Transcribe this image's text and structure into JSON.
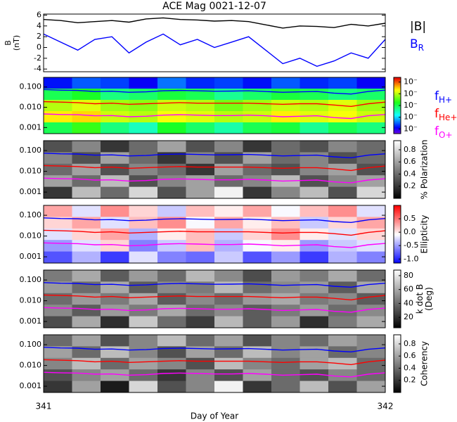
{
  "chart_data": [
    {
      "type": "line",
      "title": "ACE Mag 0021-12-07",
      "ylabel": [
        "B",
        "(nT)"
      ],
      "xlim": [
        341,
        342
      ],
      "ylim": [
        -4.5,
        6.2
      ],
      "yticks": [
        -4,
        -2,
        0,
        2,
        4,
        6
      ],
      "legend": "right",
      "x": [
        341.0,
        341.05,
        341.1,
        341.15,
        341.2,
        341.25,
        341.3,
        341.35,
        341.4,
        341.45,
        341.5,
        341.55,
        341.6,
        341.65,
        341.7,
        341.75,
        341.8,
        341.85,
        341.9,
        341.95,
        342.0
      ],
      "series": [
        {
          "name": "|B|",
          "color": "#000000",
          "values": [
            5.2,
            5.0,
            4.6,
            4.8,
            5.0,
            4.7,
            5.3,
            5.5,
            5.2,
            5.1,
            4.9,
            5.0,
            4.8,
            4.2,
            3.6,
            4.0,
            3.9,
            3.7,
            4.3,
            4.0,
            4.5
          ]
        },
        {
          "name": "B",
          "subscript": "R",
          "color": "#0000ff",
          "values": [
            2.5,
            1.0,
            -0.5,
            1.5,
            2.0,
            -1.0,
            1.0,
            2.5,
            0.5,
            1.5,
            0.0,
            1.0,
            2.0,
            -0.5,
            -3.0,
            -2.0,
            -3.5,
            -2.5,
            -1.0,
            -2.0,
            1.5
          ]
        }
      ]
    },
    {
      "type": "heatmap",
      "colormap": "rainbow",
      "xlim": [
        341,
        342
      ],
      "ylim": [
        0.0005,
        0.3
      ],
      "log_y": true,
      "yticks": [
        {
          "value": 0.001,
          "label": "0.001"
        },
        {
          "value": 0.01,
          "label": "0.010"
        },
        {
          "value": 0.1,
          "label": "0.100"
        }
      ],
      "clim": [
        -7.4,
        -2.6
      ],
      "cticks": [
        {
          "value": -3,
          "label": "10⁻"
        },
        {
          "value": -4,
          "label": "10⁻"
        },
        {
          "value": -5,
          "label": "10⁻"
        },
        {
          "value": -6,
          "label": "10⁻"
        },
        {
          "value": -7,
          "label": "10⁻"
        }
      ],
      "z": [
        [
          -6.8,
          -6.5,
          -6.6,
          -6.9,
          -6.4,
          -6.7,
          -6.6,
          -6.8,
          -6.5,
          -6.7,
          -6.6,
          -6.9
        ],
        [
          -5.0,
          -4.8,
          -5.2,
          -5.1,
          -4.9,
          -5.0,
          -5.3,
          -5.1,
          -4.9,
          -5.0,
          -5.2,
          -5.1
        ],
        [
          -4.0,
          -3.8,
          -4.1,
          -4.2,
          -3.9,
          -4.0,
          -4.3,
          -4.1,
          -3.9,
          -4.0,
          -3.8,
          -4.1
        ],
        [
          -3.6,
          -3.5,
          -3.9,
          -4.0,
          -3.7,
          -3.8,
          -4.0,
          -3.9,
          -3.6,
          -3.8,
          -3.7,
          -3.9
        ],
        [
          -5.0,
          -4.6,
          -5.2,
          -5.5,
          -4.8,
          -5.1,
          -5.4,
          -5.0,
          -4.9,
          -5.3,
          -5.0,
          -5.2
        ]
      ],
      "legend": "right",
      "x": [
        341.0,
        341.05,
        341.1,
        341.15,
        341.2,
        341.25,
        341.3,
        341.35,
        341.4,
        341.45,
        341.5,
        341.55,
        341.6,
        341.65,
        341.7,
        341.75,
        341.8,
        341.85,
        341.9,
        341.95,
        342.0
      ],
      "series": [
        {
          "name": "f",
          "subscript": "H+",
          "color": "#0000ff",
          "values": [
            0.075,
            0.07,
            0.068,
            0.06,
            0.062,
            0.055,
            0.058,
            0.065,
            0.068,
            0.065,
            0.062,
            0.063,
            0.065,
            0.06,
            0.055,
            0.058,
            0.06,
            0.05,
            0.045,
            0.06,
            0.07
          ]
        },
        {
          "name": "f",
          "subscript": "He+",
          "color": "#ff0000",
          "values": [
            0.019,
            0.018,
            0.017,
            0.015,
            0.016,
            0.014,
            0.015,
            0.016,
            0.017,
            0.016,
            0.016,
            0.016,
            0.016,
            0.015,
            0.014,
            0.015,
            0.015,
            0.013,
            0.011,
            0.015,
            0.018
          ]
        },
        {
          "name": "f",
          "subscript": "O+",
          "color": "#ff00ff",
          "values": [
            0.0047,
            0.0044,
            0.0043,
            0.0038,
            0.0039,
            0.0034,
            0.0036,
            0.0041,
            0.0043,
            0.0041,
            0.0039,
            0.0039,
            0.0041,
            0.0038,
            0.0034,
            0.0036,
            0.0038,
            0.0031,
            0.0028,
            0.0038,
            0.0044
          ]
        }
      ]
    },
    {
      "type": "heatmap",
      "colormap": "gray",
      "xlim": [
        341,
        342
      ],
      "ylim": [
        0.0005,
        0.3
      ],
      "log_y": true,
      "yticks": [
        {
          "value": 0.001,
          "label": "0.001"
        },
        {
          "value": 0.01,
          "label": "0.010"
        },
        {
          "value": 0.1,
          "label": "0.100"
        }
      ],
      "clim": [
        0,
        0.95
      ],
      "cticks": [
        0.2,
        0.4,
        0.6,
        0.8
      ],
      "clabel": [
        "% Polarization"
      ],
      "z": [
        [
          0.3,
          0.5,
          0.2,
          0.4,
          0.6,
          0.3,
          0.5,
          0.2,
          0.4,
          0.3,
          0.5,
          0.4
        ],
        [
          0.5,
          0.3,
          0.6,
          0.4,
          0.2,
          0.5,
          0.3,
          0.6,
          0.4,
          0.5,
          0.3,
          0.4
        ],
        [
          0.4,
          0.6,
          0.3,
          0.5,
          0.4,
          0.2,
          0.6,
          0.4,
          0.3,
          0.5,
          0.6,
          0.3
        ],
        [
          0.6,
          0.4,
          0.7,
          0.3,
          0.5,
          0.6,
          0.4,
          0.5,
          0.7,
          0.3,
          0.5,
          0.6
        ],
        [
          0.2,
          0.7,
          0.4,
          0.8,
          0.3,
          0.6,
          0.9,
          0.2,
          0.5,
          0.7,
          0.3,
          0.8
        ]
      ],
      "x": [
        341.0,
        341.05,
        341.1,
        341.15,
        341.2,
        341.25,
        341.3,
        341.35,
        341.4,
        341.45,
        341.5,
        341.55,
        341.6,
        341.65,
        341.7,
        341.75,
        341.8,
        341.85,
        341.9,
        341.95,
        342.0
      ],
      "series": [
        {
          "color": "#0000ff",
          "values": [
            0.075,
            0.07,
            0.068,
            0.06,
            0.062,
            0.055,
            0.058,
            0.065,
            0.068,
            0.065,
            0.062,
            0.063,
            0.065,
            0.06,
            0.055,
            0.058,
            0.06,
            0.05,
            0.045,
            0.06,
            0.07
          ]
        },
        {
          "color": "#ff0000",
          "values": [
            0.019,
            0.018,
            0.017,
            0.015,
            0.016,
            0.014,
            0.015,
            0.016,
            0.017,
            0.016,
            0.016,
            0.016,
            0.016,
            0.015,
            0.014,
            0.015,
            0.015,
            0.013,
            0.011,
            0.015,
            0.018
          ]
        },
        {
          "color": "#ff00ff",
          "values": [
            0.0047,
            0.0044,
            0.0043,
            0.0038,
            0.0039,
            0.0034,
            0.0036,
            0.0041,
            0.0043,
            0.0041,
            0.0039,
            0.0039,
            0.0041,
            0.0038,
            0.0034,
            0.0036,
            0.0038,
            0.0031,
            0.0028,
            0.0038,
            0.0044
          ]
        }
      ]
    },
    {
      "type": "heatmap",
      "colormap": "bwr",
      "xlim": [
        341,
        342
      ],
      "ylim": [
        0.0005,
        0.3
      ],
      "log_y": true,
      "yticks": [
        {
          "value": 0.001,
          "label": "0.001"
        },
        {
          "value": 0.01,
          "label": "0.010"
        },
        {
          "value": 0.1,
          "label": "0.100"
        }
      ],
      "clim": [
        -1.15,
        1.0
      ],
      "cticks": [
        0.5,
        {
          "value": 0,
          "label": "0.0"
        },
        -0.5,
        {
          "value": -1,
          "label": "-1.0"
        }
      ],
      "clabel": [
        "Ellipticity"
      ],
      "z": [
        [
          0.3,
          -0.2,
          0.4,
          0.1,
          -0.3,
          0.2,
          0.0,
          0.3,
          -0.1,
          0.2,
          0.4,
          -0.2
        ],
        [
          0.1,
          0.3,
          -0.2,
          0.2,
          0.4,
          -0.1,
          0.3,
          0.0,
          0.2,
          -0.3,
          0.1,
          0.3
        ],
        [
          -0.2,
          0.1,
          0.3,
          -0.4,
          0.0,
          0.2,
          -0.3,
          0.1,
          0.4,
          0.0,
          -0.2,
          0.1
        ],
        [
          -0.5,
          -0.2,
          0.1,
          -0.6,
          -0.3,
          0.2,
          -0.4,
          -0.1,
          0.0,
          -0.5,
          -0.3,
          -0.2
        ],
        [
          -0.8,
          -0.4,
          -0.9,
          -0.2,
          -0.6,
          -0.7,
          -0.3,
          -0.8,
          -0.5,
          -0.9,
          -0.4,
          -0.6
        ]
      ],
      "x": [
        341.0,
        341.05,
        341.1,
        341.15,
        341.2,
        341.25,
        341.3,
        341.35,
        341.4,
        341.45,
        341.5,
        341.55,
        341.6,
        341.65,
        341.7,
        341.75,
        341.8,
        341.85,
        341.9,
        341.95,
        342.0
      ],
      "series": [
        {
          "color": "#0000ff",
          "values": [
            0.075,
            0.07,
            0.068,
            0.06,
            0.062,
            0.055,
            0.058,
            0.065,
            0.068,
            0.065,
            0.062,
            0.063,
            0.065,
            0.06,
            0.055,
            0.058,
            0.06,
            0.05,
            0.045,
            0.06,
            0.07
          ]
        },
        {
          "color": "#ff0000",
          "values": [
            0.019,
            0.018,
            0.017,
            0.015,
            0.016,
            0.014,
            0.015,
            0.016,
            0.017,
            0.016,
            0.016,
            0.016,
            0.016,
            0.015,
            0.014,
            0.015,
            0.015,
            0.013,
            0.011,
            0.015,
            0.018
          ]
        },
        {
          "color": "#ff00ff",
          "values": [
            0.0047,
            0.0044,
            0.0043,
            0.0038,
            0.0039,
            0.0034,
            0.0036,
            0.0041,
            0.0043,
            0.0041,
            0.0039,
            0.0039,
            0.0041,
            0.0038,
            0.0034,
            0.0036,
            0.0038,
            0.0031,
            0.0028,
            0.0038,
            0.0044
          ]
        }
      ]
    },
    {
      "type": "heatmap",
      "colormap": "gray",
      "xlim": [
        341,
        342
      ],
      "ylim": [
        0.0005,
        0.3
      ],
      "log_y": true,
      "yticks": [
        {
          "value": 0.001,
          "label": "0.001"
        },
        {
          "value": 0.01,
          "label": "0.010"
        },
        {
          "value": 0.1,
          "label": "0.100"
        }
      ],
      "clim": [
        5,
        88
      ],
      "cticks": [
        20,
        40,
        60,
        80
      ],
      "clabel": [
        "k dot B",
        "(Deg)"
      ],
      "z": [
        [
          45,
          60,
          35,
          55,
          40,
          65,
          50,
          30,
          55,
          45,
          60,
          40
        ],
        [
          55,
          40,
          60,
          35,
          50,
          45,
          65,
          40,
          50,
          55,
          35,
          60
        ],
        [
          40,
          55,
          45,
          60,
          35,
          50,
          40,
          55,
          60,
          45,
          50,
          35
        ],
        [
          50,
          35,
          55,
          45,
          60,
          40,
          50,
          35,
          45,
          55,
          40,
          50
        ],
        [
          30,
          60,
          20,
          70,
          40,
          25,
          65,
          35,
          55,
          20,
          45,
          60
        ]
      ],
      "x": [
        341.0,
        341.05,
        341.1,
        341.15,
        341.2,
        341.25,
        341.3,
        341.35,
        341.4,
        341.45,
        341.5,
        341.55,
        341.6,
        341.65,
        341.7,
        341.75,
        341.8,
        341.85,
        341.9,
        341.95,
        342.0
      ],
      "series": [
        {
          "color": "#0000ff",
          "values": [
            0.075,
            0.07,
            0.068,
            0.06,
            0.062,
            0.055,
            0.058,
            0.065,
            0.068,
            0.065,
            0.062,
            0.063,
            0.065,
            0.06,
            0.055,
            0.058,
            0.06,
            0.05,
            0.045,
            0.06,
            0.07
          ]
        },
        {
          "color": "#ff0000",
          "values": [
            0.019,
            0.018,
            0.017,
            0.015,
            0.016,
            0.014,
            0.015,
            0.016,
            0.017,
            0.016,
            0.016,
            0.016,
            0.016,
            0.015,
            0.014,
            0.015,
            0.015,
            0.013,
            0.011,
            0.015,
            0.018
          ]
        },
        {
          "color": "#ff00ff",
          "values": [
            0.0047,
            0.0044,
            0.0043,
            0.0038,
            0.0039,
            0.0034,
            0.0036,
            0.0041,
            0.0043,
            0.0041,
            0.0039,
            0.0039,
            0.0041,
            0.0038,
            0.0034,
            0.0036,
            0.0038,
            0.0031,
            0.0028,
            0.0038,
            0.0044
          ]
        }
      ]
    },
    {
      "type": "heatmap",
      "colormap": "gray",
      "xlim": [
        341,
        342
      ],
      "ylim": [
        0.0005,
        0.3
      ],
      "log_y": true,
      "yticks": [
        {
          "value": 0.001,
          "label": "0.001"
        },
        {
          "value": 0.01,
          "label": "0.010"
        },
        {
          "value": 0.1,
          "label": "0.100"
        }
      ],
      "clim": [
        0,
        0.95
      ],
      "cticks": [
        0.2,
        0.4,
        0.6,
        0.8
      ],
      "clabel": [
        "Coherency"
      ],
      "xticks": [
        341,
        342
      ],
      "xlabel": "Day of Year",
      "z": [
        [
          0.4,
          0.6,
          0.3,
          0.5,
          0.7,
          0.4,
          0.6,
          0.3,
          0.5,
          0.4,
          0.6,
          0.5
        ],
        [
          0.6,
          0.4,
          0.7,
          0.5,
          0.3,
          0.6,
          0.4,
          0.7,
          0.5,
          0.6,
          0.4,
          0.5
        ],
        [
          0.5,
          0.7,
          0.4,
          0.6,
          0.5,
          0.3,
          0.7,
          0.5,
          0.4,
          0.6,
          0.7,
          0.4
        ],
        [
          0.3,
          0.5,
          0.6,
          0.4,
          0.2,
          0.5,
          0.3,
          0.6,
          0.4,
          0.3,
          0.5,
          0.4
        ],
        [
          0.2,
          0.6,
          0.1,
          0.8,
          0.3,
          0.5,
          0.9,
          0.2,
          0.4,
          0.7,
          0.3,
          0.6
        ]
      ],
      "x": [
        341.0,
        341.05,
        341.1,
        341.15,
        341.2,
        341.25,
        341.3,
        341.35,
        341.4,
        341.45,
        341.5,
        341.55,
        341.6,
        341.65,
        341.7,
        341.75,
        341.8,
        341.85,
        341.9,
        341.95,
        342.0
      ],
      "series": [
        {
          "color": "#0000ff",
          "values": [
            0.075,
            0.07,
            0.068,
            0.06,
            0.062,
            0.055,
            0.058,
            0.065,
            0.068,
            0.065,
            0.062,
            0.063,
            0.065,
            0.06,
            0.055,
            0.058,
            0.06,
            0.05,
            0.045,
            0.06,
            0.07
          ]
        },
        {
          "color": "#ff0000",
          "values": [
            0.019,
            0.018,
            0.017,
            0.015,
            0.016,
            0.014,
            0.015,
            0.016,
            0.017,
            0.016,
            0.016,
            0.016,
            0.016,
            0.015,
            0.014,
            0.015,
            0.015,
            0.013,
            0.011,
            0.015,
            0.018
          ]
        },
        {
          "color": "#ff00ff",
          "values": [
            0.0047,
            0.0044,
            0.0043,
            0.0038,
            0.0039,
            0.0034,
            0.0036,
            0.0041,
            0.0043,
            0.0041,
            0.0039,
            0.0039,
            0.0041,
            0.0038,
            0.0034,
            0.0036,
            0.0038,
            0.0031,
            0.0028,
            0.0038,
            0.0044
          ]
        }
      ]
    }
  ]
}
